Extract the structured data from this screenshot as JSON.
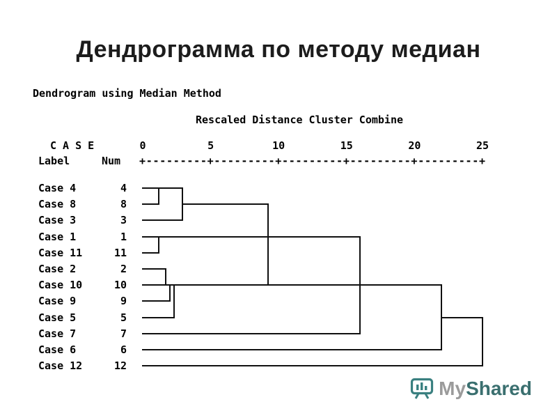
{
  "slide": {
    "title": "Дендрограмма по методу медиан",
    "background": "#ffffff",
    "text_color": "#111111"
  },
  "watermark": {
    "brand_prefix": "My",
    "brand_suffix": "Shared",
    "prefix_color": "#9b9b9b",
    "suffix_color": "#3a6f6f",
    "icon": "presentation-screen-icon",
    "icon_color": "#3a8080"
  },
  "chart_data": {
    "type": "dendrogram",
    "header": "Dendrogram using Median Method",
    "subheader": "Rescaled Distance Cluster Combine",
    "axis": {
      "case_label": "C A S E",
      "label_col": "Label",
      "num_col": "Num",
      "ticks": [
        0,
        5,
        10,
        15,
        20,
        25
      ],
      "ruler": "+---------+---------+---------+---------+---------+",
      "xlim": [
        0,
        25
      ]
    },
    "cases": [
      {
        "label": "Case 4",
        "num": "4"
      },
      {
        "label": "Case 8",
        "num": "8"
      },
      {
        "label": "Case 3",
        "num": "3"
      },
      {
        "label": "Case 1",
        "num": "1"
      },
      {
        "label": "Case 11",
        "num": "11"
      },
      {
        "label": "Case 2",
        "num": "2"
      },
      {
        "label": "Case 10",
        "num": "10"
      },
      {
        "label": "Case 9",
        "num": "9"
      },
      {
        "label": "Case 5",
        "num": "5"
      },
      {
        "label": "Case 7",
        "num": "7"
      },
      {
        "label": "Case 6",
        "num": "6"
      },
      {
        "label": "Case 12",
        "num": "12"
      }
    ],
    "merges": [
      {
        "join": [
          "Case 4",
          "Case 8"
        ],
        "distance": 1.2
      },
      {
        "join": [
          "Case 1",
          "Case 11"
        ],
        "distance": 1.2
      },
      {
        "join": [
          "Case 2",
          "Case 10"
        ],
        "distance": 1.7
      },
      {
        "join": [
          "Case 2/10",
          "Case 9"
        ],
        "distance": 2.0
      },
      {
        "join": [
          "Case 2/10/9",
          "Case 5"
        ],
        "distance": 2.3
      },
      {
        "join": [
          "Case 4/8",
          "Case 3"
        ],
        "distance": 2.9
      },
      {
        "join": [
          "Case 4/8/3",
          "Case 2/10/9/5"
        ],
        "distance": 9.2
      },
      {
        "join": [
          "Case 1/11",
          "merged cluster"
        ],
        "distance": 16.0
      },
      {
        "join": [
          "Case 7",
          "merged cluster"
        ],
        "distance": 16.0
      },
      {
        "join": [
          "Case 6",
          "merged cluster"
        ],
        "distance": 22.0
      },
      {
        "join": [
          "Case 12",
          "merged cluster"
        ],
        "distance": 25.0
      }
    ],
    "segments": {
      "horizontal": [
        {
          "row": 0,
          "x1": 0,
          "x2": 2.9
        },
        {
          "row": 1,
          "x1": 0,
          "x2": 1.2
        },
        {
          "row": 1,
          "x1": 2.9,
          "x2": 9.2
        },
        {
          "row": 2,
          "x1": 0,
          "x2": 2.9
        },
        {
          "row": 3,
          "x1": 0,
          "x2": 16.0
        },
        {
          "row": 4,
          "x1": 0,
          "x2": 1.2
        },
        {
          "row": 5,
          "x1": 0,
          "x2": 1.7
        },
        {
          "row": 6,
          "x1": 0,
          "x2": 22.0
        },
        {
          "row": 7,
          "x1": 0,
          "x2": 2.0
        },
        {
          "row": 8,
          "x1": 0,
          "x2": 2.3
        },
        {
          "row": 8,
          "x1": 22.0,
          "x2": 25.0
        },
        {
          "row": 9,
          "x1": 0,
          "x2": 16.0
        },
        {
          "row": 10,
          "x1": 0,
          "x2": 22.0
        },
        {
          "row": 11,
          "x1": 0,
          "x2": 25.0
        }
      ],
      "vertical": [
        {
          "x": 1.2,
          "row1": 0,
          "row2": 1
        },
        {
          "x": 2.9,
          "row1": 0,
          "row2": 2
        },
        {
          "x": 1.2,
          "row1": 3,
          "row2": 4
        },
        {
          "x": 1.7,
          "row1": 5,
          "row2": 6
        },
        {
          "x": 2.0,
          "row1": 6,
          "row2": 7
        },
        {
          "x": 2.3,
          "row1": 6,
          "row2": 8
        },
        {
          "x": 9.2,
          "row1": 1,
          "row2": 6
        },
        {
          "x": 16.0,
          "row1": 3,
          "row2": 9
        },
        {
          "x": 22.0,
          "row1": 6,
          "row2": 10
        },
        {
          "x": 25.0,
          "row1": 8,
          "row2": 11
        }
      ]
    }
  }
}
